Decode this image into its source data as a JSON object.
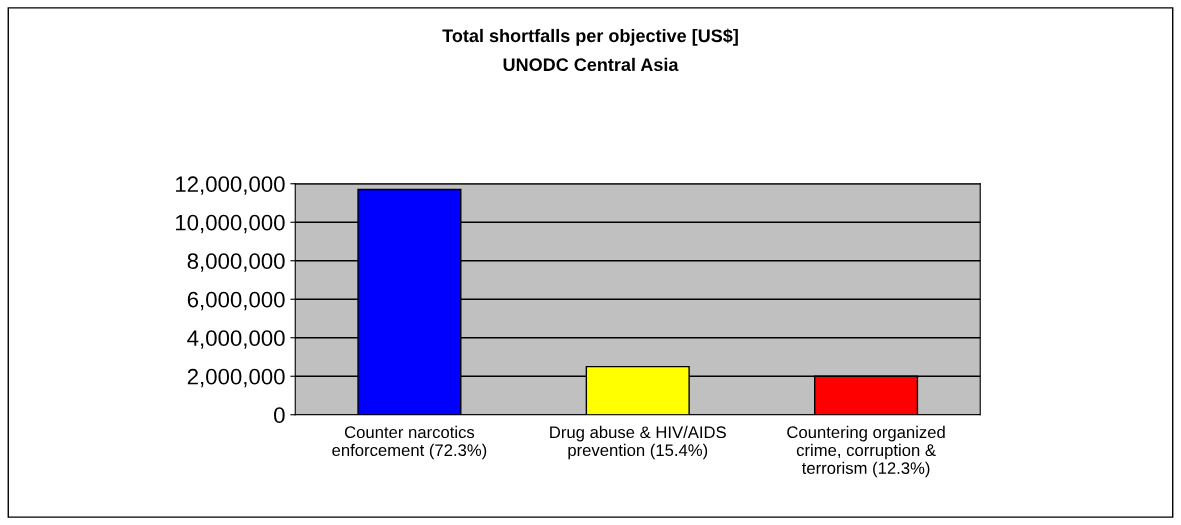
{
  "chart_data": {
    "type": "bar",
    "title": "Total shortfalls per objective [US$]",
    "subtitle": "UNODC Central Asia",
    "categories": [
      "Counter narcotics\nenforcement (72.3%)",
      "Drug abuse & HIV/AIDS\nprevention (15.4%)",
      "Countering organized\ncrime, corruption &\nterrorism (12.3%)"
    ],
    "values": [
      11700000,
      2500000,
      2000000
    ],
    "colors": [
      "#0000ff",
      "#ffff00",
      "#ff0000"
    ],
    "ylim": [
      0,
      12000000
    ],
    "yticks": [
      0,
      {
        "value": 2000000,
        "label": "2,000,000"
      },
      {
        "value": 4000000,
        "label": "4,000,000"
      },
      {
        "value": 6000000,
        "label": "6,000,000"
      },
      {
        "value": 8000000,
        "label": "8,000,000"
      },
      {
        "value": 10000000,
        "label": "10,000,000"
      },
      {
        "value": 12000000,
        "label": "12,000,000"
      }
    ],
    "grid": "y",
    "legend": false
  }
}
